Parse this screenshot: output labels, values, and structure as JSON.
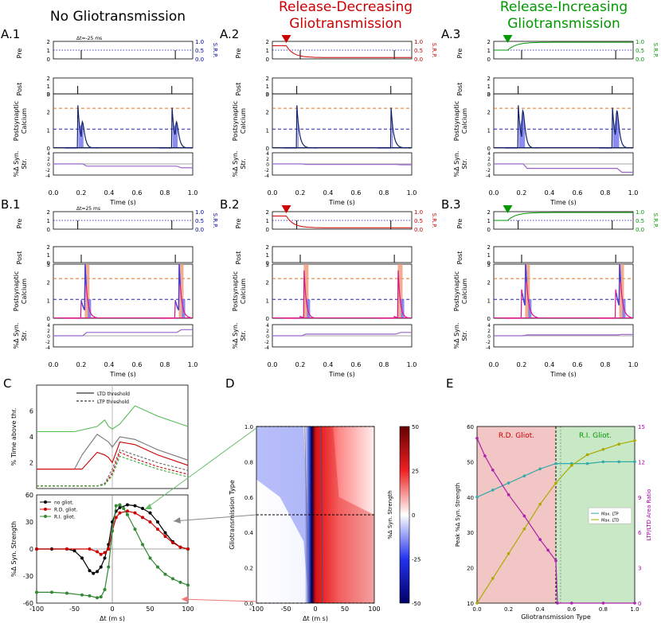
{
  "headers": {
    "col1": "No Gliotransmission",
    "col2_line1": "Release-Decreasing",
    "col2_line2": "Gliotransmission",
    "col3_line1": "Release-Increasing",
    "col3_line2": "Gliotransmission"
  },
  "panel_labels": {
    "A1": "A.1",
    "A2": "A.2",
    "A3": "A.3",
    "B1": "B.1",
    "B2": "B.2",
    "B3": "B.3",
    "C": "C",
    "D": "D",
    "E": "E"
  },
  "trace_labels": {
    "pre": "Pre",
    "post": "Post",
    "calcium_line1": "Postsynaptic",
    "calcium_line2": "Calcium",
    "syn_line1": "%Δ Syn.",
    "syn_line2": "Str.",
    "srp": "S.R.P.",
    "time_xlabel": "Time (s)",
    "dt_A": "Δt=-25 ms",
    "dt_B": "Δt=25 ms"
  },
  "ticks": {
    "time": [
      "0.0",
      "0.2",
      "0.4",
      "0.6",
      "0.8",
      "1.0"
    ],
    "pre": [
      "0",
      "1",
      "2"
    ],
    "post": [
      "0",
      "1",
      "2"
    ],
    "calcium": [
      "0",
      "1",
      "2",
      "3"
    ],
    "syn": [
      "4",
      "2",
      "0",
      "-2",
      "-4"
    ],
    "srp": [
      "1.0",
      "0.5",
      "0.0"
    ]
  },
  "colors": {
    "none": "#0000aa",
    "rd": "#cc0000",
    "ri": "#009900",
    "ltd_fill": "#7777ee",
    "ltp_fill": "#ee9977",
    "ltp_dash": "#e07020",
    "ltd_dash": "#2222bb",
    "magenta": "#dd1188",
    "purple": "#9966cc",
    "grey": "#888888",
    "black": "#000000"
  },
  "chart_data": [
    {
      "id": "C-top",
      "type": "line",
      "ylabel": "% Time above thr.",
      "yticks": [
        "2",
        "4",
        "6"
      ],
      "ylim": [
        0,
        8
      ],
      "legend": [
        "LTD threshold",
        "LTP threshold"
      ],
      "legend_position": "top-center",
      "series": [
        {
          "name": "no gliot. LTD",
          "x": [
            -100,
            -50,
            -40,
            -20,
            -10,
            -5,
            0,
            10,
            30,
            60,
            100
          ],
          "values": [
            1.5,
            1.5,
            2.6,
            4.2,
            3.8,
            3.6,
            3.2,
            4.0,
            3.8,
            3.0,
            2.2
          ]
        },
        {
          "name": "R.D. gliot. LTD",
          "x": [
            -100,
            -50,
            -40,
            -20,
            -10,
            -5,
            0,
            10,
            30,
            60,
            100
          ],
          "values": [
            1.5,
            1.5,
            1.5,
            2.8,
            2.6,
            2.4,
            2.0,
            3.6,
            3.4,
            2.6,
            1.8
          ]
        },
        {
          "name": "R.I. gliot. LTD",
          "x": [
            -100,
            -50,
            -20,
            -10,
            -5,
            0,
            10,
            30,
            60,
            100
          ],
          "values": [
            4.4,
            4.4,
            4.8,
            5.3,
            4.8,
            4.6,
            5.0,
            6.4,
            5.6,
            4.8
          ]
        },
        {
          "name": "no gliot. LTP",
          "x": [
            -100,
            -20,
            -10,
            0,
            10,
            30,
            60,
            100
          ],
          "values": [
            0.2,
            0.2,
            0.4,
            1.5,
            3.0,
            2.6,
            2.0,
            1.4
          ]
        },
        {
          "name": "R.D. gliot. LTP",
          "x": [
            -100,
            -20,
            -10,
            0,
            10,
            30,
            60,
            100
          ],
          "values": [
            0.2,
            0.2,
            0.3,
            1.2,
            2.8,
            2.3,
            1.7,
            1.1
          ]
        },
        {
          "name": "R.I. gliot. LTP",
          "x": [
            -100,
            -20,
            -10,
            0,
            10,
            30,
            60,
            100
          ],
          "values": [
            0.2,
            0.2,
            0.3,
            1.0,
            2.5,
            2.1,
            1.5,
            0.9
          ]
        }
      ]
    },
    {
      "id": "C-bottom",
      "type": "scatter",
      "xlabel": "Δt (m s)",
      "ylabel": "%Δ Syn. Strength",
      "xticks": [
        "-100",
        "-50",
        "0",
        "50",
        "100"
      ],
      "yticks": [
        "60",
        "30",
        "0",
        "-30",
        "-60"
      ],
      "xlim": [
        -100,
        100
      ],
      "ylim": [
        -60,
        60
      ],
      "legend": [
        "no gliot.",
        "R.D. gliot.",
        "R.I. gliot."
      ],
      "legend_position": "top-left",
      "series": [
        {
          "name": "no gliot.",
          "x": [
            -100,
            -80,
            -60,
            -50,
            -40,
            -30,
            -25,
            -20,
            -15,
            -10,
            -5,
            0,
            5,
            10,
            20,
            30,
            40,
            50,
            60,
            70,
            80,
            90,
            100
          ],
          "values": [
            0,
            0,
            0,
            -2,
            -10,
            -24,
            -27,
            -25,
            -20,
            -10,
            5,
            30,
            42,
            46,
            49,
            48,
            45,
            40,
            30,
            18,
            8,
            2,
            0
          ]
        },
        {
          "name": "R.D. gliot.",
          "x": [
            -100,
            -60,
            -30,
            -20,
            -15,
            -10,
            -5,
            0,
            5,
            10,
            20,
            30,
            40,
            50,
            60,
            70,
            80,
            90,
            100
          ],
          "values": [
            0,
            0,
            0,
            -3,
            -6,
            -4,
            0,
            20,
            35,
            40,
            42,
            40,
            35,
            30,
            22,
            14,
            7,
            2,
            0
          ]
        },
        {
          "name": "R.I. gliot.",
          "x": [
            -100,
            -80,
            -60,
            -40,
            -30,
            -20,
            -15,
            -10,
            -5,
            0,
            5,
            10,
            15,
            20,
            30,
            40,
            50,
            60,
            70,
            80,
            90,
            100
          ],
          "values": [
            -48,
            -48,
            -49,
            -51,
            -52,
            -54,
            -53,
            -45,
            -20,
            20,
            48,
            49,
            45,
            38,
            22,
            5,
            -10,
            -20,
            -28,
            -33,
            -37,
            -40
          ]
        }
      ]
    },
    {
      "id": "D",
      "type": "heatmap",
      "xlabel": "Δt (m s)",
      "ylabel": "Gliotransmission Type",
      "colorbar_label": "%Δ Syn. Strength",
      "xticks": [
        "-100",
        "-50",
        "0",
        "50",
        "100"
      ],
      "yticks": [
        "0.0",
        "0.2",
        "0.4",
        "0.6",
        "0.8",
        "1.0"
      ],
      "colorbar_ticks": [
        "50",
        "25",
        "0",
        "-25",
        "-50"
      ],
      "xlim": [
        -100,
        100
      ],
      "ylim": [
        0,
        1
      ],
      "zlim": [
        -50,
        50
      ],
      "reference_rows": [
        1.0,
        0.5,
        0.0
      ]
    },
    {
      "id": "E",
      "type": "line",
      "xlabel": "Gliotransmission Type",
      "ylabel_left": "Peak %Δ Syn. Strength",
      "ylabel_right": "LTP/LTD Area Ratio",
      "region_left": "R.D. Gliot.",
      "region_right": "R.I. Gliot.",
      "xticks": [
        "0.0",
        "0.2",
        "0.4",
        "0.6",
        "0.8",
        "1.0"
      ],
      "yticks_left": [
        "10",
        "20",
        "30",
        "40",
        "50",
        "60"
      ],
      "yticks_right": [
        "0",
        "3",
        "6",
        "9",
        "12",
        "15"
      ],
      "ylim_left": [
        10,
        60
      ],
      "ylim_right": [
        0,
        15
      ],
      "boundary": 0.5,
      "legend": [
        "Max. LTP",
        "Max. LTD"
      ],
      "legend_position": "center-right",
      "series": [
        {
          "name": "Max. LTP",
          "x": [
            0,
            0.1,
            0.2,
            0.3,
            0.4,
            0.5,
            0.6,
            0.7,
            0.8,
            0.9,
            1.0
          ],
          "values": [
            40,
            42,
            44,
            46,
            48,
            49.5,
            49.5,
            49.5,
            50,
            50,
            50
          ]
        },
        {
          "name": "Max. LTD",
          "x": [
            0,
            0.1,
            0.2,
            0.3,
            0.4,
            0.5,
            0.6,
            0.7,
            0.8,
            0.9,
            1.0
          ],
          "values": [
            10,
            17,
            24,
            31,
            38,
            44,
            49,
            52,
            53.5,
            55,
            56
          ]
        },
        {
          "name": "Area ratio",
          "x": [
            0,
            0.05,
            0.1,
            0.2,
            0.3,
            0.4,
            0.45,
            0.5,
            0.51,
            0.6,
            0.8,
            1.0
          ],
          "values": [
            14,
            12.5,
            11.3,
            9.2,
            7.4,
            5.4,
            4.5,
            3.6,
            0,
            0,
            0,
            0
          ]
        }
      ]
    }
  ]
}
